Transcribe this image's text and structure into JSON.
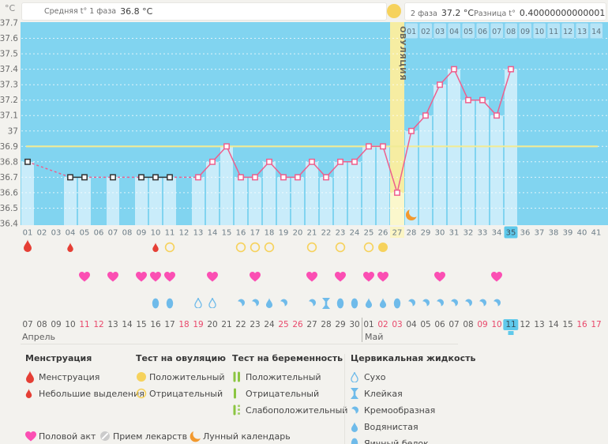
{
  "header": {
    "unit_label": "°C",
    "phase1_label": "Средняя t° 1 фаза",
    "phase1_value": "36.8 °C",
    "phase2_label": "2 фаза",
    "phase2_value": "37.2 °C",
    "diff_label": "Разница t°",
    "diff_value": "0.40000000000001 °C"
  },
  "colors": {
    "chart_bg": "#81d4f0",
    "bar": "#c9ecfa",
    "band": "#f6eda2",
    "band_light": "#fbf7cc",
    "coverline": "#f1eb96",
    "grid": "#ffffff",
    "line_phase1": "#333333",
    "line_phase2": "#ee5f8d",
    "highlight_day": "#5fc9eb",
    "day_number": "#6d7d87",
    "ytick": "#6b6b6b",
    "red_date": "#e9486b",
    "heart": "#fb4fb3",
    "drop_red": "#e53f35",
    "yellow": "#f6d25c",
    "green": "#8bc541",
    "blue_icon": "#6fbbea",
    "moon": "#f2992e",
    "meds": "#cbcbcb",
    "ovulation_text": "#6e6a5c"
  },
  "chart_data": {
    "type": "line",
    "title": "Basal temperature cycle chart",
    "ylabel": "°C",
    "ylim": [
      36.4,
      37.7
    ],
    "ytick_step": 0.1,
    "yticks": [
      "37.7",
      "37.6",
      "37.5",
      "37.4",
      "37.3",
      "37.2",
      "37.1",
      "37",
      "36.9",
      "36.8",
      "36.7",
      "36.6",
      "36.5",
      "36.4"
    ],
    "days_total": 41,
    "day_labels": [
      "01",
      "02",
      "03",
      "04",
      "05",
      "06",
      "07",
      "08",
      "09",
      "10",
      "11",
      "12",
      "13",
      "14",
      "15",
      "16",
      "17",
      "18",
      "19",
      "20",
      "21",
      "22",
      "23",
      "24",
      "25",
      "26",
      "27",
      "28",
      "29",
      "30",
      "31",
      "32",
      "33",
      "34",
      "35",
      "36",
      "37",
      "38",
      "39",
      "40",
      "41"
    ],
    "coverline": 36.9,
    "ovulation": {
      "day": 27,
      "label": "ОВУЛЯЦИЯ"
    },
    "current_day": 35,
    "phase1_last_day": 11,
    "phase2_strip_labels": [
      "01",
      "02",
      "03",
      "04",
      "05",
      "06",
      "07",
      "08",
      "09",
      "10",
      "11",
      "12",
      "13",
      "14"
    ],
    "series": [
      {
        "name": "БТ",
        "points": [
          [
            1,
            36.8
          ],
          [
            4,
            36.7
          ],
          [
            5,
            36.7
          ],
          [
            7,
            36.7
          ],
          [
            9,
            36.7
          ],
          [
            10,
            36.7
          ],
          [
            11,
            36.7
          ],
          [
            13,
            36.7
          ],
          [
            14,
            36.8
          ],
          [
            15,
            36.9
          ],
          [
            16,
            36.7
          ],
          [
            17,
            36.7
          ],
          [
            18,
            36.8
          ],
          [
            19,
            36.7
          ],
          [
            20,
            36.7
          ],
          [
            21,
            36.8
          ],
          [
            22,
            36.7
          ],
          [
            23,
            36.8
          ],
          [
            24,
            36.8
          ],
          [
            25,
            36.9
          ],
          [
            26,
            36.9
          ],
          [
            27,
            36.6
          ],
          [
            28,
            37.0
          ],
          [
            29,
            37.1
          ],
          [
            30,
            37.3
          ],
          [
            31,
            37.4
          ],
          [
            32,
            37.2
          ],
          [
            33,
            37.2
          ],
          [
            34,
            37.1
          ],
          [
            35,
            37.4
          ]
        ]
      }
    ]
  },
  "symptom_rows": {
    "menstruation": [
      {
        "day": 1,
        "icon": "drop-red-large"
      },
      {
        "day": 4,
        "icon": "drop-red-small"
      },
      {
        "day": 10,
        "icon": "drop-red-small"
      }
    ],
    "ovulation_tests": {
      "negative_days": [
        11,
        16,
        17,
        18,
        21,
        23,
        25
      ],
      "positive_days": [
        26
      ]
    },
    "intercourse_days": [
      5,
      7,
      9,
      10,
      11,
      14,
      17,
      21,
      23,
      25,
      26,
      30,
      34
    ],
    "cervical": [
      {
        "day": 10,
        "type": "eggwhite"
      },
      {
        "day": 11,
        "type": "eggwhite"
      },
      {
        "day": 13,
        "type": "dry"
      },
      {
        "day": 14,
        "type": "dry"
      },
      {
        "day": 16,
        "type": "creamy"
      },
      {
        "day": 17,
        "type": "creamy"
      },
      {
        "day": 18,
        "type": "watery"
      },
      {
        "day": 19,
        "type": "creamy"
      },
      {
        "day": 21,
        "type": "creamy"
      },
      {
        "day": 22,
        "type": "sticky"
      },
      {
        "day": 23,
        "type": "eggwhite"
      },
      {
        "day": 24,
        "type": "eggwhite"
      },
      {
        "day": 25,
        "type": "watery"
      },
      {
        "day": 26,
        "type": "watery"
      },
      {
        "day": 27,
        "type": "eggwhite"
      },
      {
        "day": 28,
        "type": "creamy"
      },
      {
        "day": 29,
        "type": "creamy"
      },
      {
        "day": 30,
        "type": "creamy"
      },
      {
        "day": 31,
        "type": "creamy"
      },
      {
        "day": 32,
        "type": "creamy"
      },
      {
        "day": 33,
        "type": "creamy"
      },
      {
        "day": 34,
        "type": "creamy"
      }
    ],
    "moon_day": 28
  },
  "calendar": {
    "months": [
      {
        "name": "Апрель",
        "at_day": 1
      },
      {
        "name": "Май",
        "at_day": 25
      }
    ],
    "dates": [
      {
        "t": "07"
      },
      {
        "t": "08"
      },
      {
        "t": "09"
      },
      {
        "t": "10"
      },
      {
        "t": "11",
        "r": 1
      },
      {
        "t": "12",
        "r": 1
      },
      {
        "t": "13"
      },
      {
        "t": "14"
      },
      {
        "t": "15"
      },
      {
        "t": "16"
      },
      {
        "t": "17"
      },
      {
        "t": "18",
        "r": 1
      },
      {
        "t": "19",
        "r": 1
      },
      {
        "t": "20"
      },
      {
        "t": "21"
      },
      {
        "t": "22"
      },
      {
        "t": "23"
      },
      {
        "t": "24"
      },
      {
        "t": "25",
        "r": 1
      },
      {
        "t": "26",
        "r": 1
      },
      {
        "t": "27"
      },
      {
        "t": "28"
      },
      {
        "t": "29"
      },
      {
        "t": "30"
      },
      {
        "t": "01"
      },
      {
        "t": "02",
        "r": 1
      },
      {
        "t": "03",
        "r": 1
      },
      {
        "t": "04"
      },
      {
        "t": "05"
      },
      {
        "t": "06"
      },
      {
        "t": "07"
      },
      {
        "t": "08"
      },
      {
        "t": "09",
        "r": 1
      },
      {
        "t": "10",
        "r": 1
      },
      {
        "t": "11",
        "h": 1
      },
      {
        "t": "12"
      },
      {
        "t": "13"
      },
      {
        "t": "14"
      },
      {
        "t": "15"
      },
      {
        "t": "16",
        "r": 1
      },
      {
        "t": "17",
        "r": 1
      }
    ]
  },
  "legend": {
    "sections": [
      {
        "title": "Менструация",
        "items": [
          {
            "icon": "drop-red-large",
            "label": "Менструация"
          },
          {
            "icon": "drop-red-small",
            "label": "Небольшие выделения"
          }
        ]
      },
      {
        "title": "Тест на овуляцию",
        "items": [
          {
            "icon": "circle-yellow-filled",
            "label": "Положительный"
          },
          {
            "icon": "circle-yellow-outline",
            "label": "Отрицательный"
          }
        ]
      },
      {
        "title": "Тест на беременность",
        "items": [
          {
            "icon": "bars-green-double",
            "label": "Положительный"
          },
          {
            "icon": "bar-green-single",
            "label": "Отрицательный"
          },
          {
            "icon": "bars-green-weak",
            "label": "Слабоположительный"
          }
        ]
      },
      {
        "title": "Цервикальная жидкость",
        "items": [
          {
            "icon": "dry",
            "label": "Сухо"
          },
          {
            "icon": "sticky",
            "label": "Клейкая"
          },
          {
            "icon": "creamy",
            "label": "Кремообразная"
          },
          {
            "icon": "watery",
            "label": "Водянистая"
          },
          {
            "icon": "eggwhite",
            "label": "Яичный белок"
          }
        ]
      }
    ],
    "footer_items": [
      {
        "icon": "heart-pink",
        "label": "Половой акт"
      },
      {
        "icon": "meds-gray",
        "label": "Прием лекарств"
      },
      {
        "icon": "moon-orange",
        "label": "Лунный календарь"
      }
    ]
  }
}
